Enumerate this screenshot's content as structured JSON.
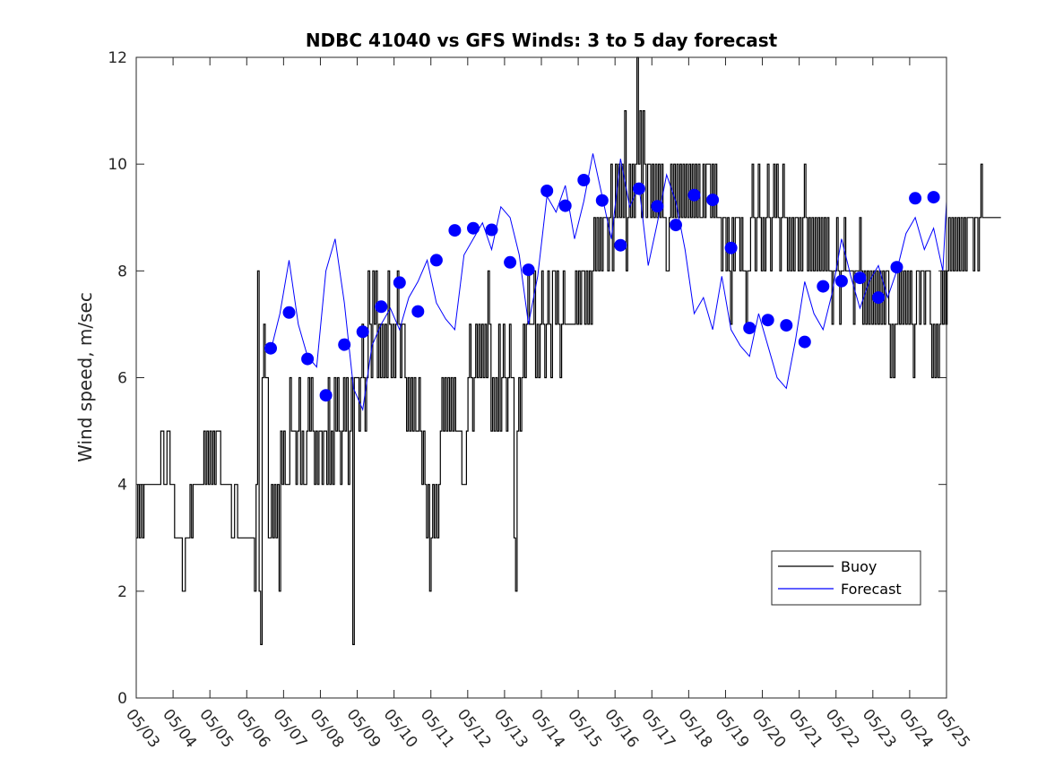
{
  "chart_data": {
    "type": "line",
    "title": "NDBC 41040 vs GFS Winds: 3 to 5 day forecast",
    "xlabel": "",
    "ylabel": "Wind speed, m/sec",
    "xlim": [
      "05/03",
      "05/25"
    ],
    "ylim": [
      0,
      12
    ],
    "yticks": [
      0,
      2,
      4,
      6,
      8,
      10,
      12
    ],
    "xticks": [
      "05/03",
      "05/04",
      "05/05",
      "05/06",
      "05/07",
      "05/08",
      "05/09",
      "05/10",
      "05/11",
      "05/12",
      "05/13",
      "05/14",
      "05/15",
      "05/16",
      "05/17",
      "05/18",
      "05/19",
      "05/20",
      "05/21",
      "05/22",
      "05/23",
      "05/24",
      "05/25"
    ],
    "grid": false,
    "legend_position": "bottom-right",
    "legend": [
      {
        "name": "Buoy",
        "color": "#000000"
      },
      {
        "name": "Forecast",
        "color": "#0000ff"
      }
    ],
    "series": [
      {
        "name": "Buoy",
        "color": "#000000",
        "style": "step",
        "x_day_start": 0,
        "x_step_days": 0.0417,
        "values": [
          3,
          4,
          3,
          4,
          3,
          4,
          4,
          4,
          4,
          4,
          4,
          4,
          4,
          4,
          4,
          4,
          5,
          5,
          4,
          4,
          5,
          5,
          4,
          4,
          4,
          3,
          3,
          3,
          3,
          3,
          2,
          2,
          3,
          3,
          3,
          4,
          3,
          4,
          4,
          4,
          4,
          4,
          4,
          4,
          5,
          4,
          5,
          4,
          5,
          4,
          5,
          4,
          5,
          5,
          5,
          4,
          4,
          4,
          4,
          4,
          4,
          4,
          3,
          3,
          4,
          4,
          3,
          3,
          3,
          3,
          3,
          3,
          3,
          3,
          3,
          3,
          3,
          2,
          4,
          8,
          2,
          1,
          6,
          7,
          6,
          6,
          3,
          3,
          4,
          3,
          4,
          3,
          4,
          2,
          5,
          4,
          5,
          4,
          4,
          4,
          6,
          5,
          5,
          5,
          4,
          5,
          6,
          4,
          5,
          4,
          4,
          5,
          6,
          5,
          6,
          5,
          4,
          5,
          4,
          5,
          5,
          4,
          5,
          5,
          4,
          6,
          4,
          5,
          4,
          6,
          5,
          6,
          5,
          4,
          5,
          6,
          5,
          6,
          4,
          5,
          6,
          1,
          6,
          6,
          6,
          5,
          6,
          7,
          6,
          5,
          6,
          8,
          7,
          6,
          8,
          7,
          8,
          6,
          7,
          6,
          7,
          6,
          7,
          6,
          8,
          7,
          6,
          7,
          6,
          7,
          8,
          7,
          6,
          7,
          7,
          6,
          5,
          6,
          5,
          6,
          5,
          6,
          5,
          5,
          6,
          5,
          4,
          5,
          4,
          3,
          4,
          2,
          3,
          4,
          3,
          4,
          3,
          4,
          5,
          6,
          5,
          6,
          5,
          6,
          5,
          6,
          5,
          6,
          5,
          5,
          5,
          5,
          4,
          4,
          4,
          5,
          6,
          7,
          6,
          5,
          6,
          7,
          6,
          7,
          6,
          7,
          6,
          7,
          6,
          8,
          7,
          5,
          6,
          5,
          6,
          5,
          7,
          5,
          6,
          7,
          6,
          5,
          6,
          7,
          6,
          6,
          3,
          2,
          5,
          6,
          5,
          6,
          7,
          6,
          7,
          8,
          7,
          7,
          7,
          8,
          6,
          7,
          6,
          7,
          8,
          7,
          6,
          7,
          8,
          7,
          6,
          8,
          8,
          7,
          8,
          7,
          6,
          7,
          8,
          7,
          7,
          7,
          7,
          7,
          7,
          7,
          8,
          7,
          8,
          7,
          8,
          8,
          7,
          8,
          7,
          8,
          7,
          8,
          9,
          8,
          9,
          8,
          9,
          8,
          9,
          9,
          9,
          8,
          9,
          10,
          8,
          9,
          10,
          9,
          10,
          9,
          10,
          9,
          11,
          8,
          9,
          10,
          9,
          10,
          9,
          10,
          12,
          10,
          11,
          9,
          11,
          10,
          9,
          10,
          10,
          9,
          10,
          9,
          10,
          9,
          10,
          9,
          10,
          9,
          9,
          8,
          8,
          9,
          10,
          9,
          10,
          9,
          10,
          9,
          10,
          9,
          10,
          9,
          10,
          9,
          10,
          9,
          10,
          9,
          10,
          9,
          10,
          9,
          9,
          10,
          9,
          10,
          10,
          10,
          9,
          10,
          9,
          10,
          9,
          9,
          9,
          8,
          9,
          9,
          8,
          9,
          8,
          7,
          9,
          8,
          9,
          9,
          9,
          8,
          9,
          8,
          8,
          7,
          8,
          8,
          9,
          10,
          9,
          8,
          9,
          10,
          9,
          8,
          9,
          8,
          9,
          10,
          9,
          8,
          9,
          10,
          9,
          10,
          9,
          8,
          9,
          10,
          9,
          9,
          8,
          9,
          8,
          9,
          8,
          9,
          9,
          8,
          9,
          8,
          9,
          10,
          9,
          8,
          9,
          8,
          9,
          8,
          9,
          8,
          9,
          8,
          9,
          8,
          9,
          8,
          9,
          8,
          8,
          7,
          8,
          8,
          9,
          8,
          7,
          8,
          8,
          9,
          8,
          8,
          8,
          8,
          8,
          7,
          8,
          8,
          8,
          9,
          8,
          7,
          8,
          7,
          8,
          7,
          8,
          7,
          8,
          7,
          8,
          7,
          8,
          7,
          8,
          7,
          8,
          8,
          7,
          6,
          7,
          6,
          7,
          7,
          8,
          7,
          8,
          7,
          8,
          7,
          8,
          7,
          8,
          7,
          6,
          7,
          8,
          8,
          7,
          8,
          8,
          7,
          8,
          8,
          8,
          7,
          6,
          7,
          6,
          7,
          6,
          7,
          8,
          7,
          8,
          7,
          8,
          9,
          8,
          9,
          8,
          9,
          8,
          9,
          8,
          9,
          8,
          9,
          8,
          9,
          9,
          9,
          9,
          8,
          9,
          9,
          8,
          9,
          10,
          9,
          9,
          9,
          9,
          9,
          9,
          9,
          9,
          9,
          9,
          9,
          9
        ]
      },
      {
        "name": "Forecast",
        "color": "#0000ff",
        "style": "line",
        "x_days": [
          3.65,
          3.9,
          4.15,
          4.4,
          4.65,
          4.9,
          5.15,
          5.4,
          5.65,
          5.9,
          6.15,
          6.4,
          6.65,
          6.9,
          7.15,
          7.4,
          7.65,
          7.9,
          8.15,
          8.4,
          8.65,
          8.9,
          9.15,
          9.4,
          9.65,
          9.9,
          10.15,
          10.4,
          10.65,
          10.9,
          11.15,
          11.4,
          11.65,
          11.9,
          12.15,
          12.4,
          12.65,
          12.9,
          13.15,
          13.4,
          13.65,
          13.9,
          14.15,
          14.4,
          14.65,
          14.9,
          15.15,
          15.4,
          15.65,
          15.9,
          16.15,
          16.4,
          16.65,
          16.9,
          17.15,
          17.4,
          17.65,
          17.9,
          18.15,
          18.4,
          18.65,
          18.9,
          19.15,
          19.4,
          19.65,
          19.9,
          20.15,
          20.4,
          20.65,
          20.9,
          21.15,
          21.4,
          21.65,
          21.9,
          22.0
        ],
        "values": [
          6.5,
          7.2,
          8.2,
          7.0,
          6.4,
          6.2,
          8.0,
          8.6,
          7.4,
          5.8,
          5.4,
          6.6,
          7.0,
          7.3,
          6.9,
          7.5,
          7.8,
          8.2,
          7.4,
          7.1,
          6.9,
          8.3,
          8.6,
          8.9,
          8.4,
          9.2,
          9.0,
          8.3,
          7.0,
          7.9,
          9.4,
          9.1,
          9.6,
          8.6,
          9.3,
          10.2,
          9.4,
          8.6,
          10.1,
          9.2,
          9.6,
          8.1,
          8.9,
          9.8,
          9.3,
          8.4,
          7.2,
          7.5,
          6.9,
          7.9,
          6.9,
          6.6,
          6.4,
          7.2,
          6.6,
          6.0,
          5.8,
          6.7,
          7.8,
          7.2,
          6.9,
          7.6,
          8.6,
          7.9,
          7.3,
          7.8,
          8.1,
          7.5,
          8.0,
          8.7,
          9.0,
          8.4,
          8.8,
          8.0,
          9.3
        ]
      },
      {
        "name": "",
        "color": "#0000ff",
        "style": "markers",
        "x_days": [
          3.65,
          4.15,
          4.65,
          5.15,
          5.65,
          6.15,
          6.65,
          7.15,
          7.65,
          8.15,
          8.65,
          9.15,
          9.65,
          10.15,
          10.65,
          11.15,
          11.65,
          12.15,
          12.65,
          13.15,
          13.65,
          14.15,
          14.65,
          15.15,
          15.65,
          16.15,
          16.65,
          17.15,
          17.65,
          18.15,
          18.65,
          19.15,
          19.65,
          20.15,
          20.65,
          21.15,
          21.65
        ],
        "values": [
          6.55,
          7.22,
          6.35,
          5.67,
          6.62,
          6.86,
          7.33,
          7.78,
          7.24,
          8.2,
          8.76,
          8.8,
          8.77,
          8.16,
          8.02,
          9.5,
          9.22,
          9.7,
          9.32,
          8.48,
          9.54,
          9.21,
          8.86,
          9.42,
          9.33,
          8.43,
          6.93,
          7.08,
          6.98,
          6.67,
          7.71,
          7.81,
          7.87,
          7.5,
          8.07,
          9.36,
          9.38
        ]
      }
    ]
  }
}
